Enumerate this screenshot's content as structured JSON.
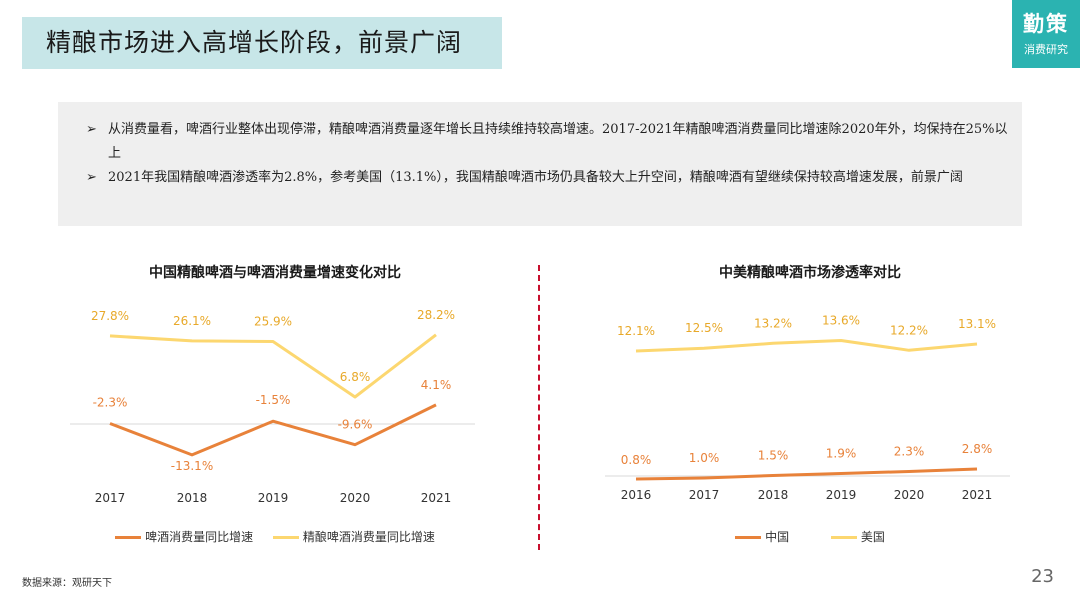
{
  "header": {
    "title": "精酿市场进入高增长阶段，前景广阔",
    "logo_main": "勤策",
    "logo_sub": "消费研究"
  },
  "summary": {
    "bullets": [
      "从消费量看，啤酒行业整体出现停滞，精酿啤酒消费量逐年增长且持续维持较高增速。2017-2021年精酿啤酒消费量同比增速除2020年外，均保持在25%以上",
      "2021年我国精酿啤酒渗透率为2.8%，参考美国（13.1%），我国精酿啤酒市场仍具备较大上升空间，精酿啤酒有望继续保持较高增速发展，前景广阔"
    ]
  },
  "colors": {
    "orange": "#e8823a",
    "yellow": "#fcd770",
    "label_orange": "#e8823a",
    "label_yellow": "#e8a92a",
    "divider": "#c8102e"
  },
  "chart_data": [
    {
      "type": "line",
      "title": "中国精酿啤酒与啤酒消费量增速变化对比",
      "categories": [
        "2017",
        "2018",
        "2019",
        "2020",
        "2021"
      ],
      "series": [
        {
          "name": "啤酒消费量同比增速",
          "values": [
            -2.3,
            -13.1,
            -1.5,
            -9.6,
            4.1
          ],
          "labels": [
            "-2.3%",
            "-13.1%",
            "-1.5%",
            "-9.6%",
            "4.1%"
          ]
        },
        {
          "name": "精酿啤酒消费量同比增速",
          "values": [
            27.8,
            26.1,
            25.9,
            6.8,
            28.2
          ],
          "labels": [
            "27.8%",
            "26.1%",
            "25.9%",
            "6.8%",
            "28.2%"
          ]
        }
      ],
      "ylim": [
        -20,
        35
      ],
      "grid": false
    },
    {
      "type": "line",
      "title": "中美精酿啤酒市场渗透率对比",
      "categories": [
        "2016",
        "2017",
        "2018",
        "2019",
        "2020",
        "2021"
      ],
      "series": [
        {
          "name": "中国",
          "values": [
            0.8,
            1.0,
            1.5,
            1.9,
            2.3,
            2.8
          ],
          "labels": [
            "0.8%",
            "1.0%",
            "1.5%",
            "1.9%",
            "2.3%",
            "2.8%"
          ]
        },
        {
          "name": "美国",
          "values": [
            12.1,
            12.5,
            13.2,
            13.6,
            12.2,
            13.1
          ],
          "labels": [
            "12.1%",
            "12.5%",
            "13.2%",
            "13.6%",
            "12.2%",
            "13.1%"
          ]
        }
      ],
      "grid": false
    }
  ],
  "footer": {
    "source": "数据来源：观研天下",
    "page": "23"
  }
}
